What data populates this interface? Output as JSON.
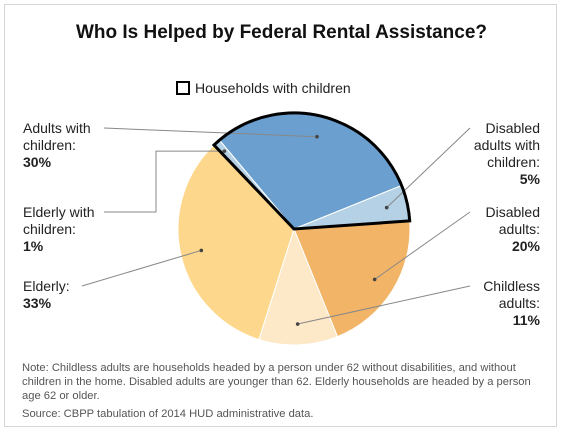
{
  "chart_data": {
    "type": "pie",
    "title": "Who Is Helped by Federal Rental Assistance?",
    "legend": {
      "label": "Households with children",
      "placement": "top-center"
    },
    "slices": [
      {
        "label": "Adults with children:",
        "value": 30,
        "value_label": "30%",
        "with_children": true,
        "color": "#6a9fcf"
      },
      {
        "label": "Disabled adults with children:",
        "value": 5,
        "value_label": "5%",
        "with_children": true,
        "color": "#b5d1e6"
      },
      {
        "label": "Disabled adults:",
        "value": 20,
        "value_label": "20%",
        "with_children": false,
        "color": "#f2b466"
      },
      {
        "label": "Childless adults:",
        "value": 11,
        "value_label": "11%",
        "with_children": false,
        "color": "#fde8c8"
      },
      {
        "label": "Elderly:",
        "value": 33,
        "value_label": "33%",
        "with_children": false,
        "color": "#fdd88c"
      },
      {
        "label": "Elderly with children:",
        "value": 1,
        "value_label": "1%",
        "with_children": true,
        "color": "#b5d1e6"
      }
    ]
  },
  "labels_text": {
    "adults_with_children": {
      "name": "Adults with children:",
      "pct": "30%"
    },
    "elderly_with_children": {
      "name": "Elderly with children:",
      "pct": "1%"
    },
    "elderly": {
      "name": "Elderly:",
      "pct": "33%"
    },
    "disabled_with_children": {
      "name": "Disabled adults with children:",
      "pct": "5%"
    },
    "disabled": {
      "name": "Disabled adults:",
      "pct": "20%"
    },
    "childless": {
      "name": "Childless adults:",
      "pct": "11%"
    }
  },
  "note": "Note: Childless adults are households headed by a person under 62 without disabilities, and without children in the home. Disabled adults are younger than 62.  Elderly households are headed by a person age 62 or older.",
  "source": "Source: CBPP tabulation of 2014 HUD administrative data."
}
